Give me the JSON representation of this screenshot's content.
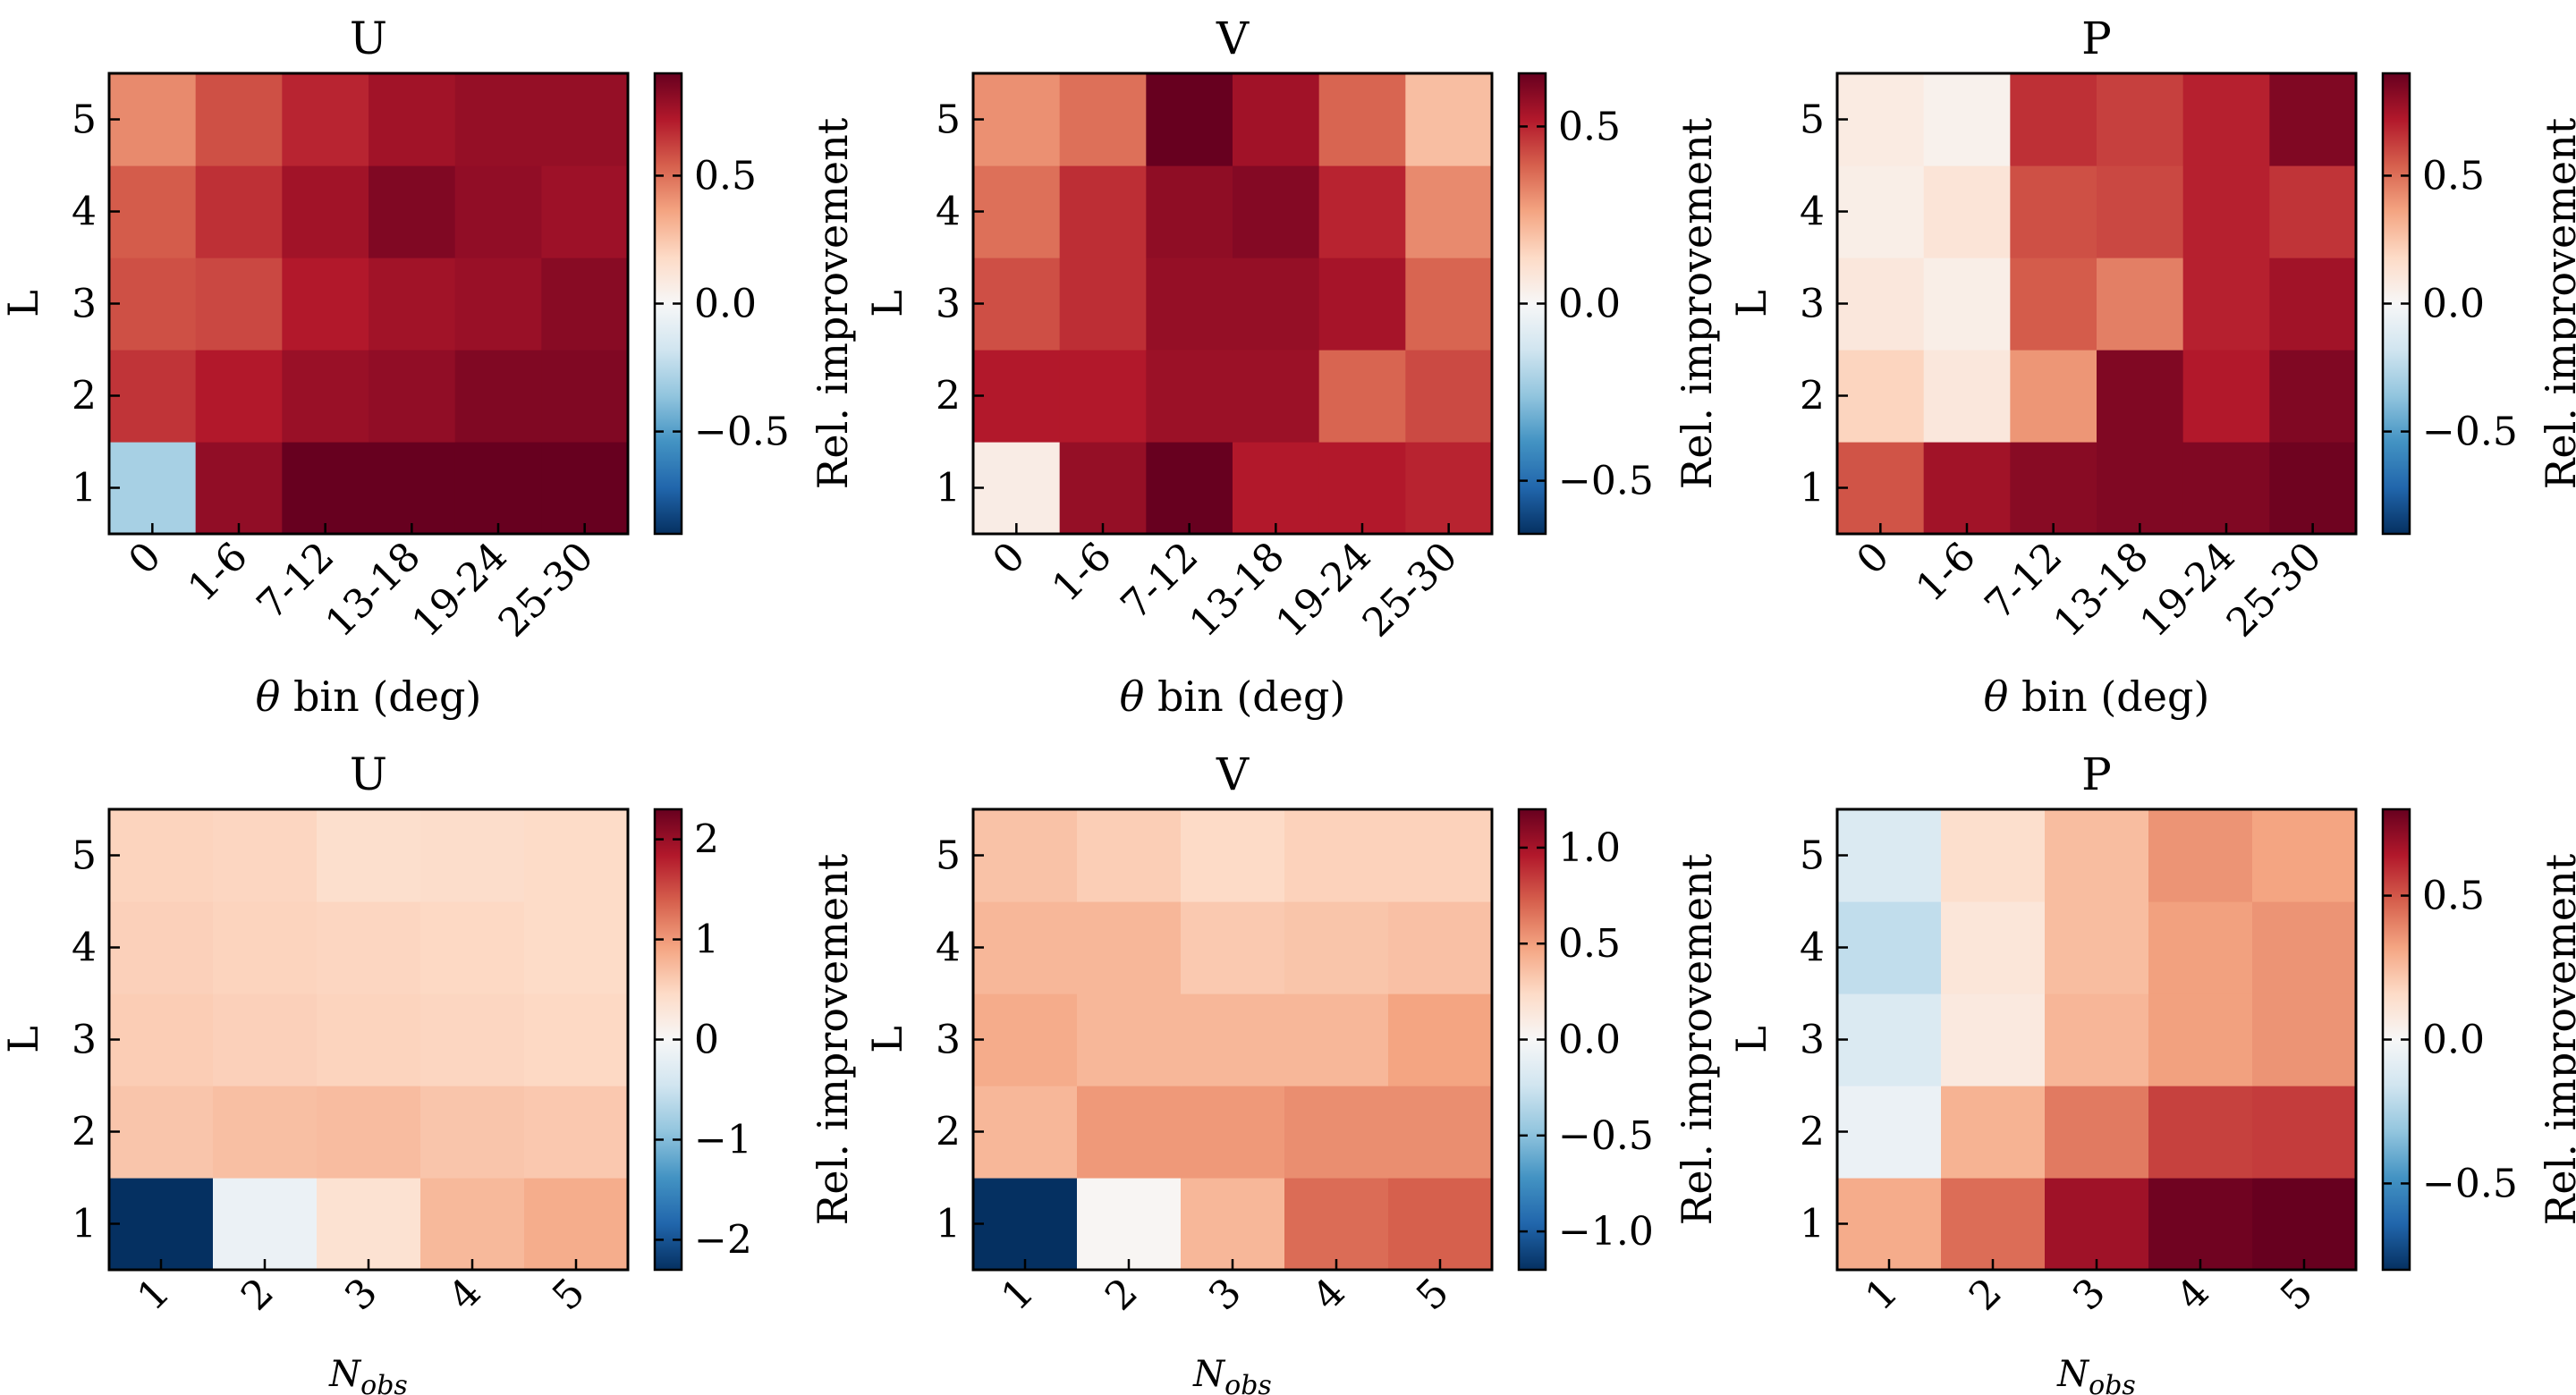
{
  "figure": {
    "colorbar_label": "Rel. improvement"
  },
  "chart_data": [
    {
      "type": "heatmap",
      "title": "U",
      "xlabel": "θ bin (deg)",
      "ylabel": "L",
      "xticklabels": [
        "0",
        "1-6",
        "7-12",
        "13-18",
        "19-24",
        "25-30"
      ],
      "yticklabels": [
        "1",
        "2",
        "3",
        "4",
        "5"
      ],
      "vlim": [
        -0.9,
        0.9
      ],
      "colorbar_ticks": [
        0.5,
        0.0,
        -0.5
      ],
      "colorbar_ticklabels": [
        "0.5",
        "0.0",
        "−0.5"
      ],
      "values": [
        [
          -0.3,
          0.8,
          0.9,
          0.9,
          0.9,
          0.9
        ],
        [
          0.65,
          0.72,
          0.78,
          0.8,
          0.84,
          0.84
        ],
        [
          0.58,
          0.6,
          0.72,
          0.76,
          0.78,
          0.82
        ],
        [
          0.55,
          0.66,
          0.76,
          0.84,
          0.8,
          0.77
        ],
        [
          0.43,
          0.58,
          0.69,
          0.76,
          0.79,
          0.79
        ]
      ]
    },
    {
      "type": "heatmap",
      "title": "V",
      "xlabel": "θ bin (deg)",
      "ylabel": "L",
      "xticklabels": [
        "0",
        "1-6",
        "7-12",
        "13-18",
        "19-24",
        "25-30"
      ],
      "yticklabels": [
        "1",
        "2",
        "3",
        "4",
        "5"
      ],
      "vlim": [
        -0.65,
        0.65
      ],
      "colorbar_ticks": [
        0.5,
        0.0,
        -0.5
      ],
      "colorbar_ticklabels": [
        "0.5",
        "0.0",
        "−0.5"
      ],
      "values": [
        [
          0.05,
          0.57,
          0.65,
          0.52,
          0.52,
          0.5
        ],
        [
          0.52,
          0.52,
          0.56,
          0.56,
          0.38,
          0.43
        ],
        [
          0.42,
          0.48,
          0.57,
          0.57,
          0.54,
          0.38
        ],
        [
          0.36,
          0.48,
          0.58,
          0.6,
          0.5,
          0.31
        ],
        [
          0.3,
          0.36,
          0.65,
          0.55,
          0.38,
          0.2
        ]
      ]
    },
    {
      "type": "heatmap",
      "title": "P",
      "xlabel": "θ bin (deg)",
      "ylabel": "L",
      "xticklabels": [
        "0",
        "1-6",
        "7-12",
        "13-18",
        "19-24",
        "25-30"
      ],
      "yticklabels": [
        "1",
        "2",
        "3",
        "4",
        "5"
      ],
      "vlim": [
        -0.9,
        0.9
      ],
      "colorbar_ticks": [
        0.5,
        0.0,
        -0.5
      ],
      "colorbar_ticklabels": [
        "0.5",
        "0.0",
        "−0.5"
      ],
      "values": [
        [
          0.57,
          0.76,
          0.82,
          0.84,
          0.84,
          0.88
        ],
        [
          0.2,
          0.1,
          0.4,
          0.84,
          0.72,
          0.84
        ],
        [
          0.1,
          0.06,
          0.55,
          0.46,
          0.7,
          0.76
        ],
        [
          0.06,
          0.12,
          0.58,
          0.6,
          0.7,
          0.65
        ],
        [
          0.08,
          0.04,
          0.66,
          0.62,
          0.7,
          0.84
        ]
      ]
    },
    {
      "type": "heatmap",
      "title": "U",
      "xlabel": "N_obs",
      "ylabel": "L",
      "xticklabels": [
        "1",
        "2",
        "3",
        "4",
        "5"
      ],
      "yticklabels": [
        "1",
        "2",
        "3",
        "4",
        "5"
      ],
      "vlim": [
        -2.3,
        2.3
      ],
      "colorbar_ticks": [
        2,
        1,
        0,
        -1,
        -2
      ],
      "colorbar_ticklabels": [
        "2",
        "1",
        "0",
        "−1",
        "−2"
      ],
      "values": [
        [
          -2.3,
          -0.15,
          0.35,
          0.75,
          0.85
        ],
        [
          0.65,
          0.7,
          0.72,
          0.65,
          0.62
        ],
        [
          0.58,
          0.55,
          0.52,
          0.5,
          0.48
        ],
        [
          0.55,
          0.52,
          0.5,
          0.48,
          0.45
        ],
        [
          0.52,
          0.5,
          0.4,
          0.42,
          0.45
        ]
      ]
    },
    {
      "type": "heatmap",
      "title": "V",
      "xlabel": "N_obs",
      "ylabel": "L",
      "xticklabels": [
        "1",
        "2",
        "3",
        "4",
        "5"
      ],
      "yticklabels": [
        "1",
        "2",
        "3",
        "4",
        "5"
      ],
      "vlim": [
        -1.2,
        1.2
      ],
      "colorbar_ticks": [
        1.0,
        0.5,
        0.0,
        -0.5,
        -1.0
      ],
      "colorbar_ticklabels": [
        "1.0",
        "0.5",
        "0.0",
        "−0.5",
        "−1.0"
      ],
      "values": [
        [
          -1.2,
          0.02,
          0.4,
          0.68,
          0.72
        ],
        [
          0.4,
          0.52,
          0.52,
          0.56,
          0.56
        ],
        [
          0.45,
          0.4,
          0.4,
          0.4,
          0.48
        ],
        [
          0.4,
          0.4,
          0.32,
          0.34,
          0.36
        ],
        [
          0.35,
          0.3,
          0.24,
          0.28,
          0.28
        ]
      ]
    },
    {
      "type": "heatmap",
      "title": "P",
      "xlabel": "N_obs",
      "ylabel": "L",
      "xticklabels": [
        "1",
        "2",
        "3",
        "4",
        "5"
      ],
      "yticklabels": [
        "1",
        "2",
        "3",
        "4",
        "5"
      ],
      "vlim": [
        -0.8,
        0.8
      ],
      "colorbar_ticks": [
        0.5,
        0.0,
        -0.5
      ],
      "colorbar_ticklabels": [
        "0.5",
        "0.0",
        "−0.5"
      ],
      "values": [
        [
          0.3,
          0.45,
          0.68,
          0.78,
          0.8
        ],
        [
          -0.05,
          0.28,
          0.42,
          0.55,
          0.56
        ],
        [
          -0.12,
          0.08,
          0.27,
          0.33,
          0.36
        ],
        [
          -0.2,
          0.1,
          0.25,
          0.33,
          0.36
        ],
        [
          -0.12,
          0.14,
          0.25,
          0.36,
          0.32
        ]
      ]
    }
  ]
}
